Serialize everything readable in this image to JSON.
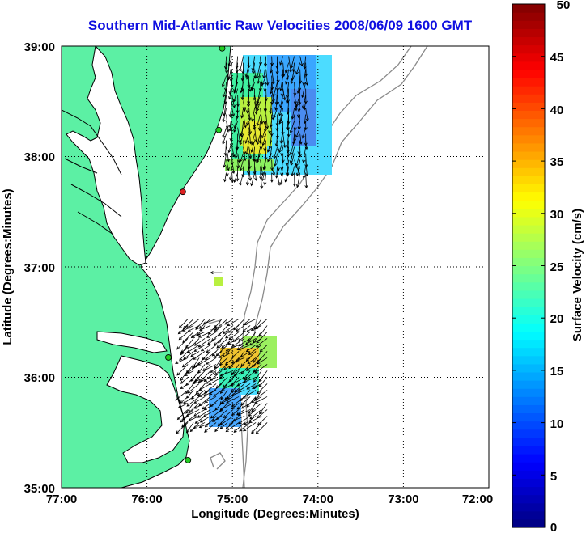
{
  "title": "Southern Mid-Atlantic Raw Velocities 2008/06/09 1600 GMT",
  "x_axis": {
    "label": "Longitude (Degrees:Minutes)",
    "ticks": [
      "77:00",
      "76:00",
      "75:00",
      "74:00",
      "73:00",
      "72:00"
    ]
  },
  "y_axis": {
    "label": "Latitude (Degrees:Minutes)",
    "ticks": [
      "39:00",
      "38:00",
      "37:00",
      "36:00",
      "35:00"
    ]
  },
  "colorbar": {
    "label": "Surface Velocity (cm/s)",
    "ticks": [
      "50",
      "45",
      "40",
      "35",
      "30",
      "25",
      "20",
      "15",
      "10",
      "5",
      "0"
    ],
    "min": 0,
    "max": 50,
    "colormap": "jet"
  },
  "colors": {
    "land": "#5cf0a4",
    "water": "#ffffff",
    "title": "#1010e0",
    "bathymetry": "#8a8a8a",
    "grid": "#000000"
  },
  "map_extent": {
    "lon": [
      -77,
      -72
    ],
    "lat": [
      35,
      39
    ]
  },
  "grid": "dotted",
  "stations": [
    {
      "lat": 38.98,
      "lon": -75.12,
      "color": "#22cc22"
    },
    {
      "lat": 38.24,
      "lon": -75.16,
      "color": "#22cc22"
    },
    {
      "lat": 37.68,
      "lon": -75.58,
      "color": "#dd2222"
    },
    {
      "lat": 36.18,
      "lon": -75.75,
      "color": "#22cc22"
    },
    {
      "lat": 35.25,
      "lon": -75.52,
      "color": "#22cc22"
    }
  ],
  "vector_fields": [
    {
      "region": "north",
      "lat": [
        37.85,
        38.93
      ],
      "lon": [
        -75.1,
        -74.12
      ],
      "speed_cm_s": [
        8,
        28
      ]
    },
    {
      "region": "south",
      "lat": [
        35.55,
        36.55
      ],
      "lon": [
        -75.55,
        -74.55
      ],
      "speed_cm_s": [
        5,
        30
      ]
    },
    {
      "region": "isolated",
      "lat": [
        36.9,
        36.97
      ],
      "lon": [
        -75.15,
        -75.1
      ],
      "speed_cm_s": [
        20,
        22
      ]
    }
  ]
}
